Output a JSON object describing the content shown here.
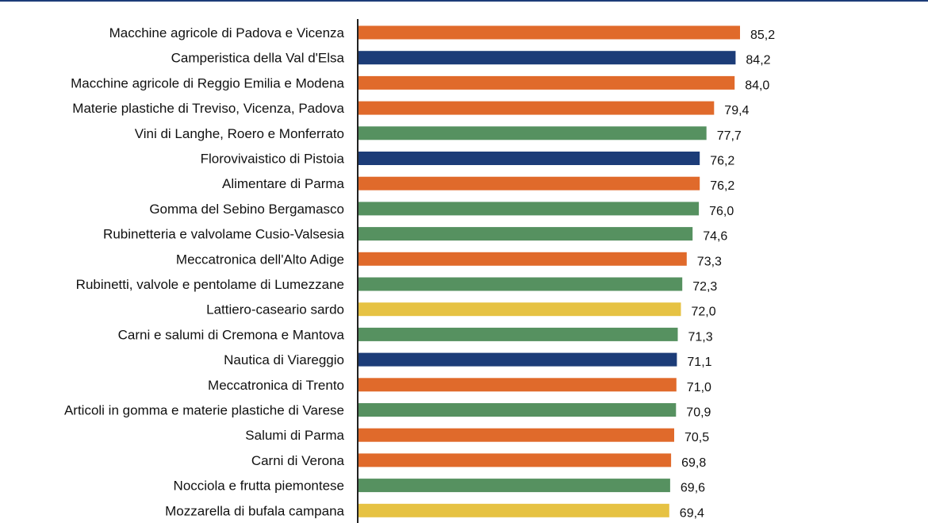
{
  "chart_data": {
    "type": "bar",
    "orientation": "horizontal",
    "title": "",
    "xlabel": "",
    "ylabel": "",
    "grid": false,
    "legend": "none",
    "categories": [
      "Macchine agricole di Padova e Vicenza",
      "Camperistica della Val d'Elsa",
      "Macchine agricole di Reggio Emilia e Modena",
      "Materie plastiche di Treviso, Vicenza, Padova",
      "Vini di Langhe, Roero e Monferrato",
      "Florovivaistico di Pistoia",
      "Alimentare di Parma",
      "Gomma del Sebino Bergamasco",
      "Rubinetteria e valvolame Cusio-Valsesia",
      "Meccatronica dell'Alto Adige",
      "Rubinetti, valvole e pentolame di Lumezzane",
      "Lattiero-caseario sardo",
      "Carni e salumi di Cremona e Mantova",
      "Nautica di Viareggio",
      "Meccatronica di Trento",
      "Articoli in gomma e materie plastiche di Varese",
      "Salumi di Parma",
      "Carni di Verona",
      "Nocciola e frutta piemontese",
      "Mozzarella di bufala campana"
    ],
    "values": [
      85.2,
      84.2,
      84.0,
      79.4,
      77.7,
      76.2,
      76.2,
      76.0,
      74.6,
      73.3,
      72.3,
      72.0,
      71.3,
      71.1,
      71.0,
      70.9,
      70.5,
      69.8,
      69.6,
      69.4
    ],
    "value_labels": [
      "85,2",
      "84,2",
      "84,0",
      "79,4",
      "77,7",
      "76,2",
      "76,2",
      "76,0",
      "74,6",
      "73,3",
      "72,3",
      "72,0",
      "71,3",
      "71,1",
      "71,0",
      "70,9",
      "70,5",
      "69,8",
      "69,6",
      "69,4"
    ],
    "bar_colors": [
      "#e06a2b",
      "#1c3c78",
      "#e06a2b",
      "#e06a2b",
      "#569160",
      "#1c3c78",
      "#e06a2b",
      "#569160",
      "#569160",
      "#e06a2b",
      "#569160",
      "#e6c243",
      "#569160",
      "#1c3c78",
      "#e06a2b",
      "#569160",
      "#e06a2b",
      "#e06a2b",
      "#569160",
      "#e6c243"
    ],
    "xlim": [
      0,
      87.5
    ]
  },
  "colors": {
    "orange": "#e06a2b",
    "navy": "#1c3c78",
    "green": "#569160",
    "yellow": "#e6c243",
    "axis": "#222222",
    "top_rule": "#1c3c78"
  }
}
